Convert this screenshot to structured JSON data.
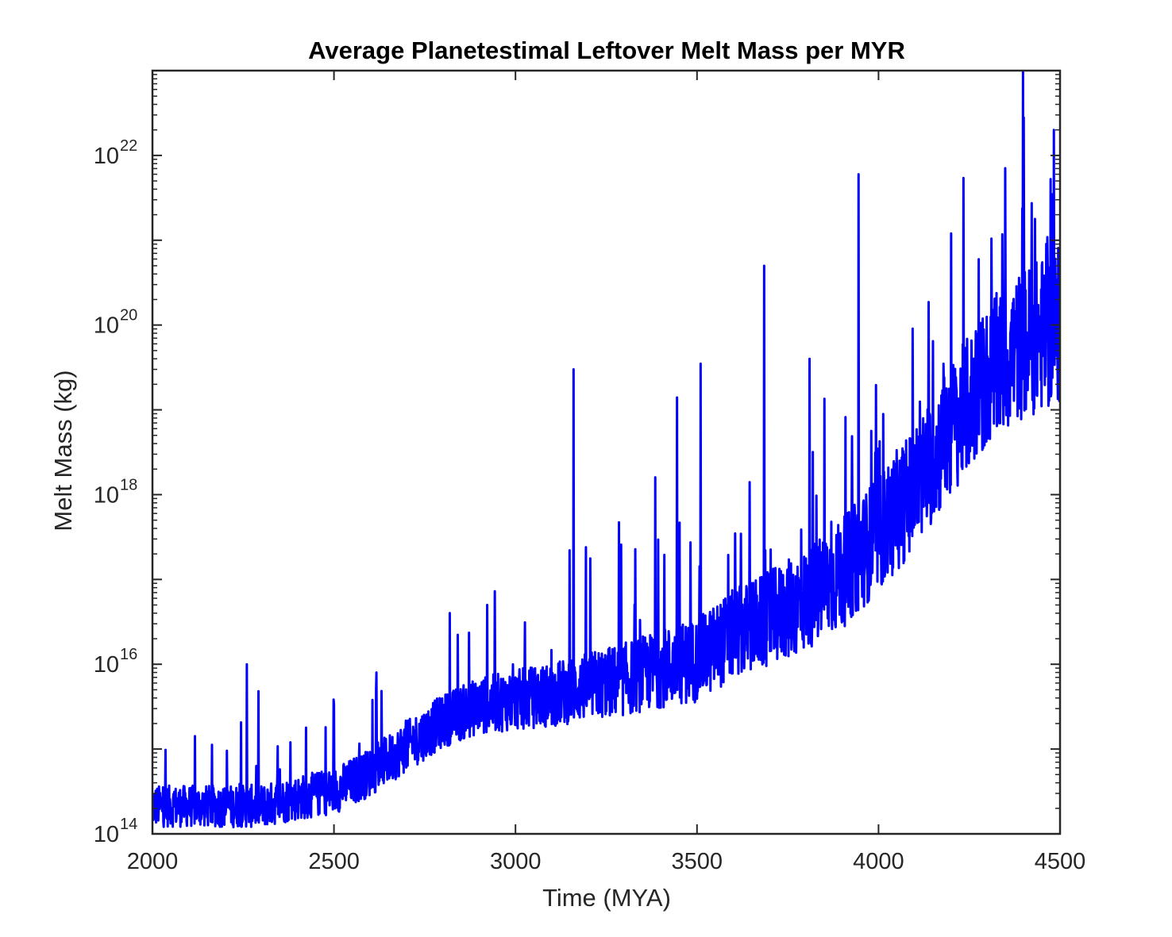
{
  "chart_data": {
    "type": "line",
    "title": "Average Planetestimal Leftover Melt Mass per MYR",
    "xlabel": "Time (MYA)",
    "ylabel": "Melt Mass (kg)",
    "xlim": [
      2000,
      4500
    ],
    "ylim": [
      100000000000000.0,
      1e+23
    ],
    "yscale": "log",
    "grid": false,
    "line_color": "#0000ff",
    "axis_color": "#262626",
    "x_ticks": [
      2000,
      2500,
      3000,
      3500,
      4000,
      4500
    ],
    "x_tick_labels": [
      "2000",
      "2500",
      "3000",
      "3500",
      "4000",
      "4500"
    ],
    "y_ticks": [
      {
        "value": 100000000000000.0,
        "base": "10",
        "exp": "14"
      },
      {
        "value": 1e+16,
        "base": "10",
        "exp": "16"
      },
      {
        "value": 1e+18,
        "base": "10",
        "exp": "18"
      },
      {
        "value": 1e+20,
        "base": "10",
        "exp": "20"
      },
      {
        "value": 1e+22,
        "base": "10",
        "exp": "22"
      }
    ],
    "series": [
      {
        "x": [
          2000,
          2100,
          2200,
          2300,
          2400,
          2500,
          2600,
          2700,
          2800,
          2900,
          3000,
          3100,
          3200,
          3300,
          3400,
          3500,
          3600,
          3700,
          3800,
          3900,
          4000,
          4100,
          4200,
          4300,
          4400,
          4500
        ],
        "y": [
          200000000000000.0,
          200000000000000.0,
          200000000000000.0,
          200000000000000.0,
          250000000000000.0,
          300000000000000.0,
          500000000000000.0,
          1000000000000000.0,
          2000000000000000.0,
          3000000000000000.0,
          3500000000000000.0,
          4000000000000000.0,
          5000000000000000.0,
          6000000000000000.0,
          8000000000000000.0,
          1e+16,
          2e+16,
          3e+16,
          5e+16,
          1e+17,
          3e+17,
          1e+18,
          5e+18,
          2e+19,
          5e+19,
          8e+19
        ]
      }
    ],
    "spikes": [
      {
        "x": 2260,
        "y": 1e+16
      },
      {
        "x": 3160,
        "y": 3e+19
      },
      {
        "x": 3385,
        "y": 1.6e+18
      },
      {
        "x": 3445,
        "y": 1.4e+19
      },
      {
        "x": 3510,
        "y": 3.5e+19
      },
      {
        "x": 3685,
        "y": 5e+20
      },
      {
        "x": 3810,
        "y": 4e+19
      },
      {
        "x": 3945,
        "y": 6e+21
      },
      {
        "x": 4200,
        "y": 1.2e+21
      },
      {
        "x": 4400,
        "y": 2.8e+22
      },
      {
        "x": 4480,
        "y": 3.5e+21
      }
    ]
  }
}
